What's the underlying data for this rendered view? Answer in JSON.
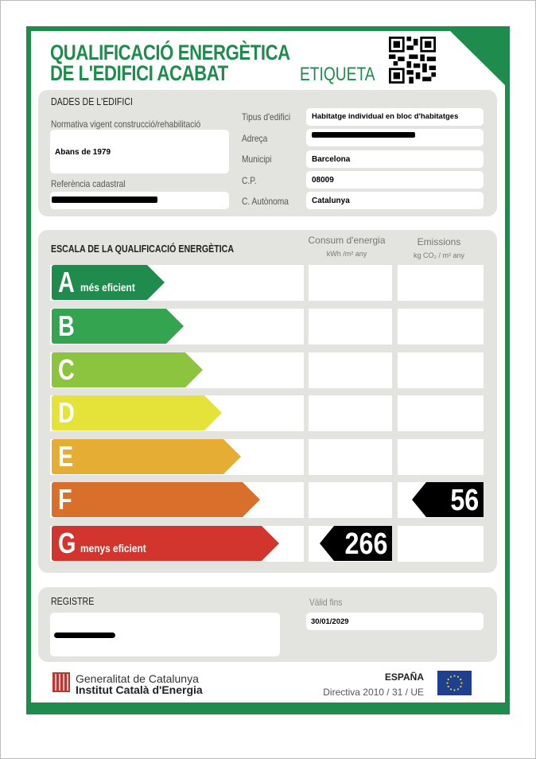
{
  "header": {
    "title_line1": "QUALIFICACIÓ ENERGÈTICA",
    "title_line2": "DE L'EDIFICI ACABAT",
    "label": "ETIQUETA",
    "qr_icon": "qr-code-icon"
  },
  "building": {
    "section_title": "DADES DE L'EDIFICI",
    "normativa_label": "Normativa vigent construcció/rehabilitació",
    "normativa_value": "Abans de 1979",
    "cadastral_label": "Referència cadastral",
    "fields": [
      {
        "label": "Tipus d'edifici",
        "value": "Habitatge individual en bloc d'habitatges"
      },
      {
        "label": "Adreça",
        "value": ""
      },
      {
        "label": "Municipi",
        "value": "Barcelona"
      },
      {
        "label": "C.P.",
        "value": "08009"
      },
      {
        "label": "C. Autònoma",
        "value": "Catalunya"
      }
    ]
  },
  "scale": {
    "title": "ESCALA DE LA QUALIFICACIÓ ENERGÈTICA",
    "col_consumption": "Consum d'energia",
    "col_consumption_unit": "kWh /m² any",
    "col_emissions": "Emissions",
    "col_emissions_unit": "kg CO₂ / m² any",
    "classes": [
      {
        "letter": "A",
        "sub": "més eficient",
        "color": "#1f8b4c"
      },
      {
        "letter": "B",
        "sub": "",
        "color": "#34a450"
      },
      {
        "letter": "C",
        "sub": "",
        "color": "#8dc43f"
      },
      {
        "letter": "D",
        "sub": "",
        "color": "#e5e33a"
      },
      {
        "letter": "E",
        "sub": "",
        "color": "#e5ad33"
      },
      {
        "letter": "F",
        "sub": "",
        "color": "#d8702b"
      },
      {
        "letter": "G",
        "sub": "menys eficient",
        "color": "#d2352d"
      }
    ],
    "consumption": {
      "class": "G",
      "value": "266"
    },
    "emissions": {
      "class": "F",
      "value": "56"
    }
  },
  "registry": {
    "title": "REGISTRE",
    "valid_label": "Vàlid fins",
    "valid_value": "30/01/2029"
  },
  "footer": {
    "org1": "Generalitat de Catalunya",
    "org2": "Institut Català d'Energia",
    "country": "ESPAÑA",
    "directive": "Directiva 2010 / 31 / UE",
    "eu_flag_icon": "eu-flag-icon"
  }
}
